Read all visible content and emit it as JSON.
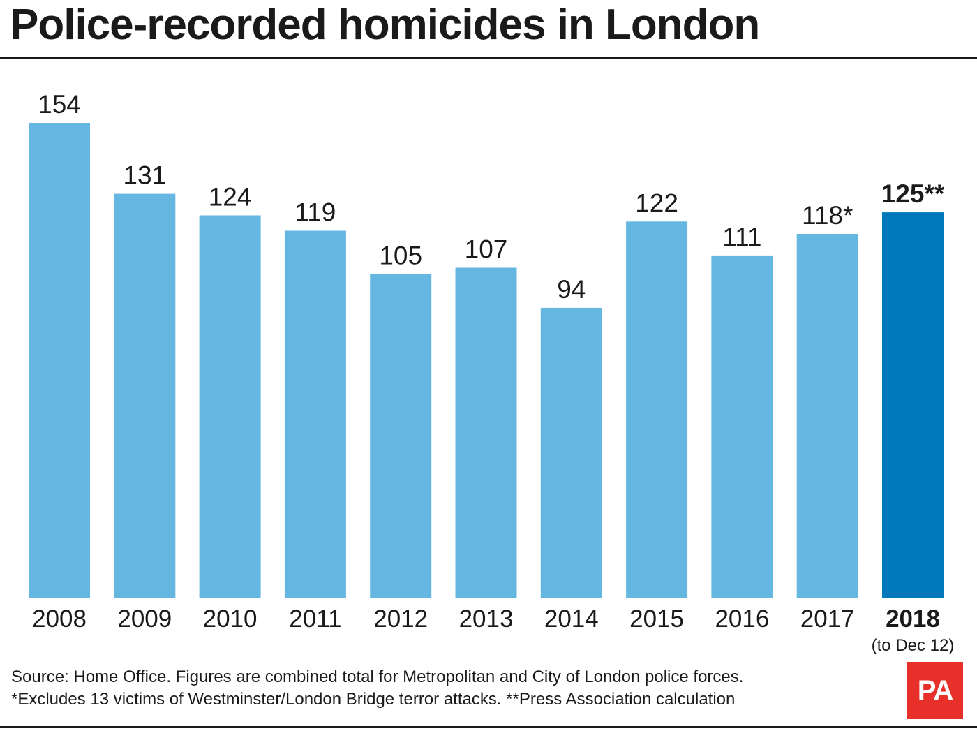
{
  "title": "Police-recorded homicides in London",
  "source_lines": [
    "Source: Home Office. Figures are combined total for Metropolitan and City of London police forces.",
    "*Excludes 13 victims of Westminster/London Bridge terror attacks. **Press Association calculation"
  ],
  "logo": "PA",
  "colors": {
    "bar": "#65b6e0",
    "highlight_bar": "#0079bc",
    "text": "#1a1a1a",
    "logo_bg": "#e8302a"
  },
  "chart_data": {
    "type": "bar",
    "title": "Police-recorded homicides in London",
    "xlabel": "",
    "ylabel": "",
    "grid": false,
    "categories": [
      "2008",
      "2009",
      "2010",
      "2011",
      "2012",
      "2013",
      "2014",
      "2015",
      "2016",
      "2017",
      "2018"
    ],
    "values": [
      154,
      131,
      124,
      119,
      105,
      107,
      94,
      122,
      111,
      118,
      125
    ],
    "value_labels": [
      "154",
      "131",
      "124",
      "119",
      "105",
      "107",
      "94",
      "122",
      "111",
      "118*",
      "125**"
    ],
    "highlight_index": 10,
    "highlight_sublabel": "(to Dec 12)",
    "ylim": [
      0,
      154
    ]
  }
}
